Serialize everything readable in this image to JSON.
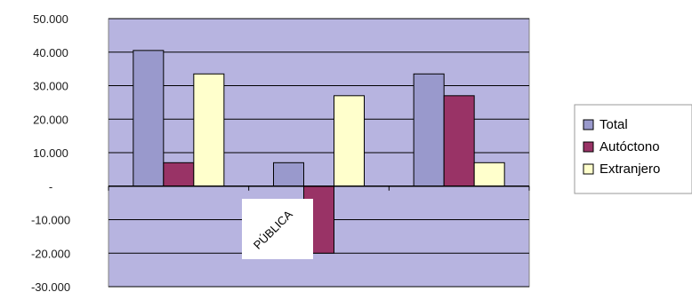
{
  "chart_data": {
    "type": "bar",
    "categories": [
      "",
      "PÚBLICA",
      ""
    ],
    "series": [
      {
        "name": "Total",
        "values": [
          40500,
          7000,
          33500
        ],
        "color": "#9999cc"
      },
      {
        "name": "Autóctono",
        "values": [
          7000,
          -20000,
          27000
        ],
        "color": "#993366"
      },
      {
        "name": "Extranjero",
        "values": [
          33500,
          27000,
          7000
        ],
        "color": "#ffffcc"
      }
    ],
    "ylim": [
      -30000,
      50000
    ],
    "yticks": [
      50000,
      40000,
      30000,
      20000,
      10000,
      0,
      -10000,
      -20000,
      -30000
    ],
    "ytick_labels": [
      "50.000",
      "40.000",
      "30.000",
      "20.000",
      "10.000",
      "-",
      "-10.000",
      "-20.000",
      "-30.000"
    ],
    "plot_background": "#b7b4e0",
    "grid": true,
    "legend": "right",
    "title": "",
    "xlabel": "",
    "ylabel": ""
  }
}
